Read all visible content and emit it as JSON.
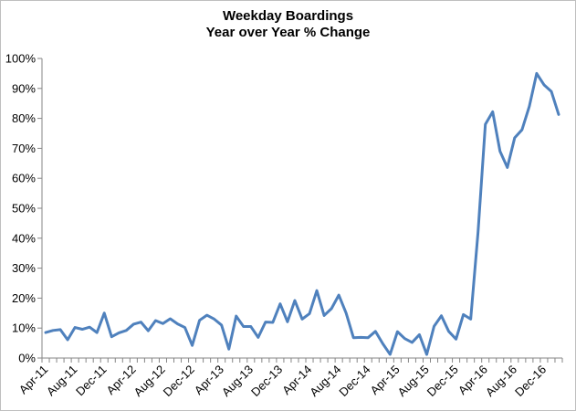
{
  "chart_data": {
    "type": "line",
    "title": "Weekday Boardings",
    "subtitle": "Year over Year % Change",
    "xlabel": "",
    "ylabel": "",
    "ylim": [
      0,
      100
    ],
    "grid": false,
    "legend": "none",
    "line_color": "#4F81BD",
    "y_ticks": [
      "0%",
      "10%",
      "20%",
      "30%",
      "40%",
      "50%",
      "60%",
      "70%",
      "80%",
      "90%",
      "100%"
    ],
    "x_tick_labels": [
      "Apr-11",
      "Aug-11",
      "Dec-11",
      "Apr-12",
      "Aug-12",
      "Dec-12",
      "Apr-13",
      "Aug-13",
      "Dec-13",
      "Apr-14",
      "Aug-14",
      "Dec-14",
      "Apr-15",
      "Aug-15",
      "Dec-15",
      "Apr-16",
      "Aug-16",
      "Dec-16"
    ],
    "series": [
      {
        "values": [
          8.5,
          9.2,
          9.5,
          6.1,
          10.2,
          9.6,
          10.3,
          8.5,
          15.0,
          7.1,
          8.4,
          9.2,
          11.3,
          12.0,
          9.1,
          12.5,
          11.5,
          13.1,
          11.4,
          10.2,
          4.2,
          12.6,
          14.3,
          13.0,
          11.0,
          3.0,
          14.0,
          10.5,
          10.5,
          6.9,
          12.0,
          11.9,
          18.1,
          12.1,
          19.2,
          13.0,
          14.8,
          22.5,
          14.2,
          16.5,
          21.0,
          15.0,
          6.8,
          6.9,
          6.8,
          8.9,
          4.8,
          1.2,
          8.8,
          6.5,
          5.2,
          7.8,
          1.2,
          10.6,
          14.1,
          8.9,
          6.3,
          14.5,
          13.0,
          42.0,
          78.0,
          82.2,
          69.0,
          63.6,
          73.5,
          76.2,
          84.0,
          95.0,
          91.2,
          89.0,
          81.3
        ]
      }
    ]
  }
}
